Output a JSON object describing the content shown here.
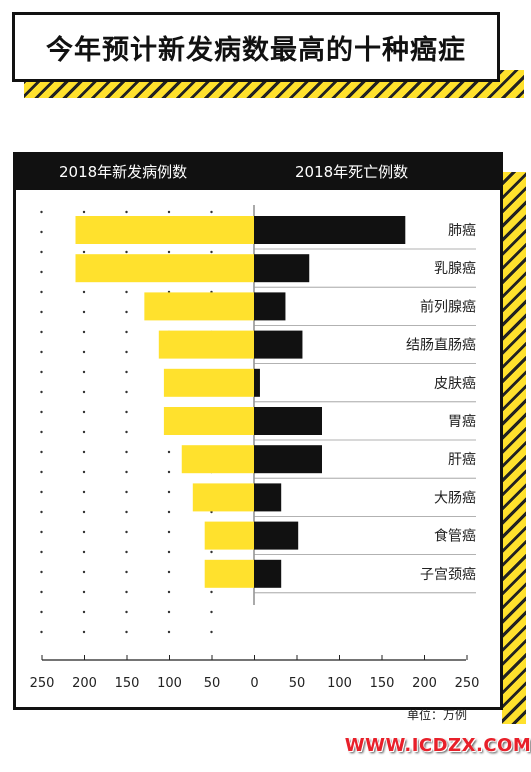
{
  "title": "今年预计新发病数最高的十种癌症",
  "header": {
    "left_label": "2018年新发病例数",
    "right_label": "2018年死亡例数"
  },
  "unit_label": "单位：万例",
  "watermark": "WWW.ICDZX.COM",
  "colors": {
    "yellow": "#ffe12d",
    "black": "#111111",
    "watermark": "#e8202a"
  },
  "chart_data": {
    "type": "bar",
    "categories": [
      "肺癌",
      "乳腺癌",
      "前列腺癌",
      "结肠直肠癌",
      "皮肤癌",
      "胃癌",
      "肝癌",
      "大肠癌",
      "食管癌",
      "子宫颈癌"
    ],
    "series": [
      {
        "name": "2018年新发病例数",
        "values": [
          210,
          210,
          129,
          112,
          106,
          106,
          85,
          72,
          58,
          58
        ]
      },
      {
        "name": "2018年死亡例数",
        "values": [
          178,
          65,
          37,
          57,
          7,
          80,
          80,
          32,
          52,
          32
        ]
      }
    ],
    "x_ticks": [
      "250",
      "200",
      "150",
      "100",
      "50",
      "0",
      "50",
      "100",
      "150",
      "200",
      "250"
    ],
    "xlim": [
      0,
      250
    ]
  }
}
